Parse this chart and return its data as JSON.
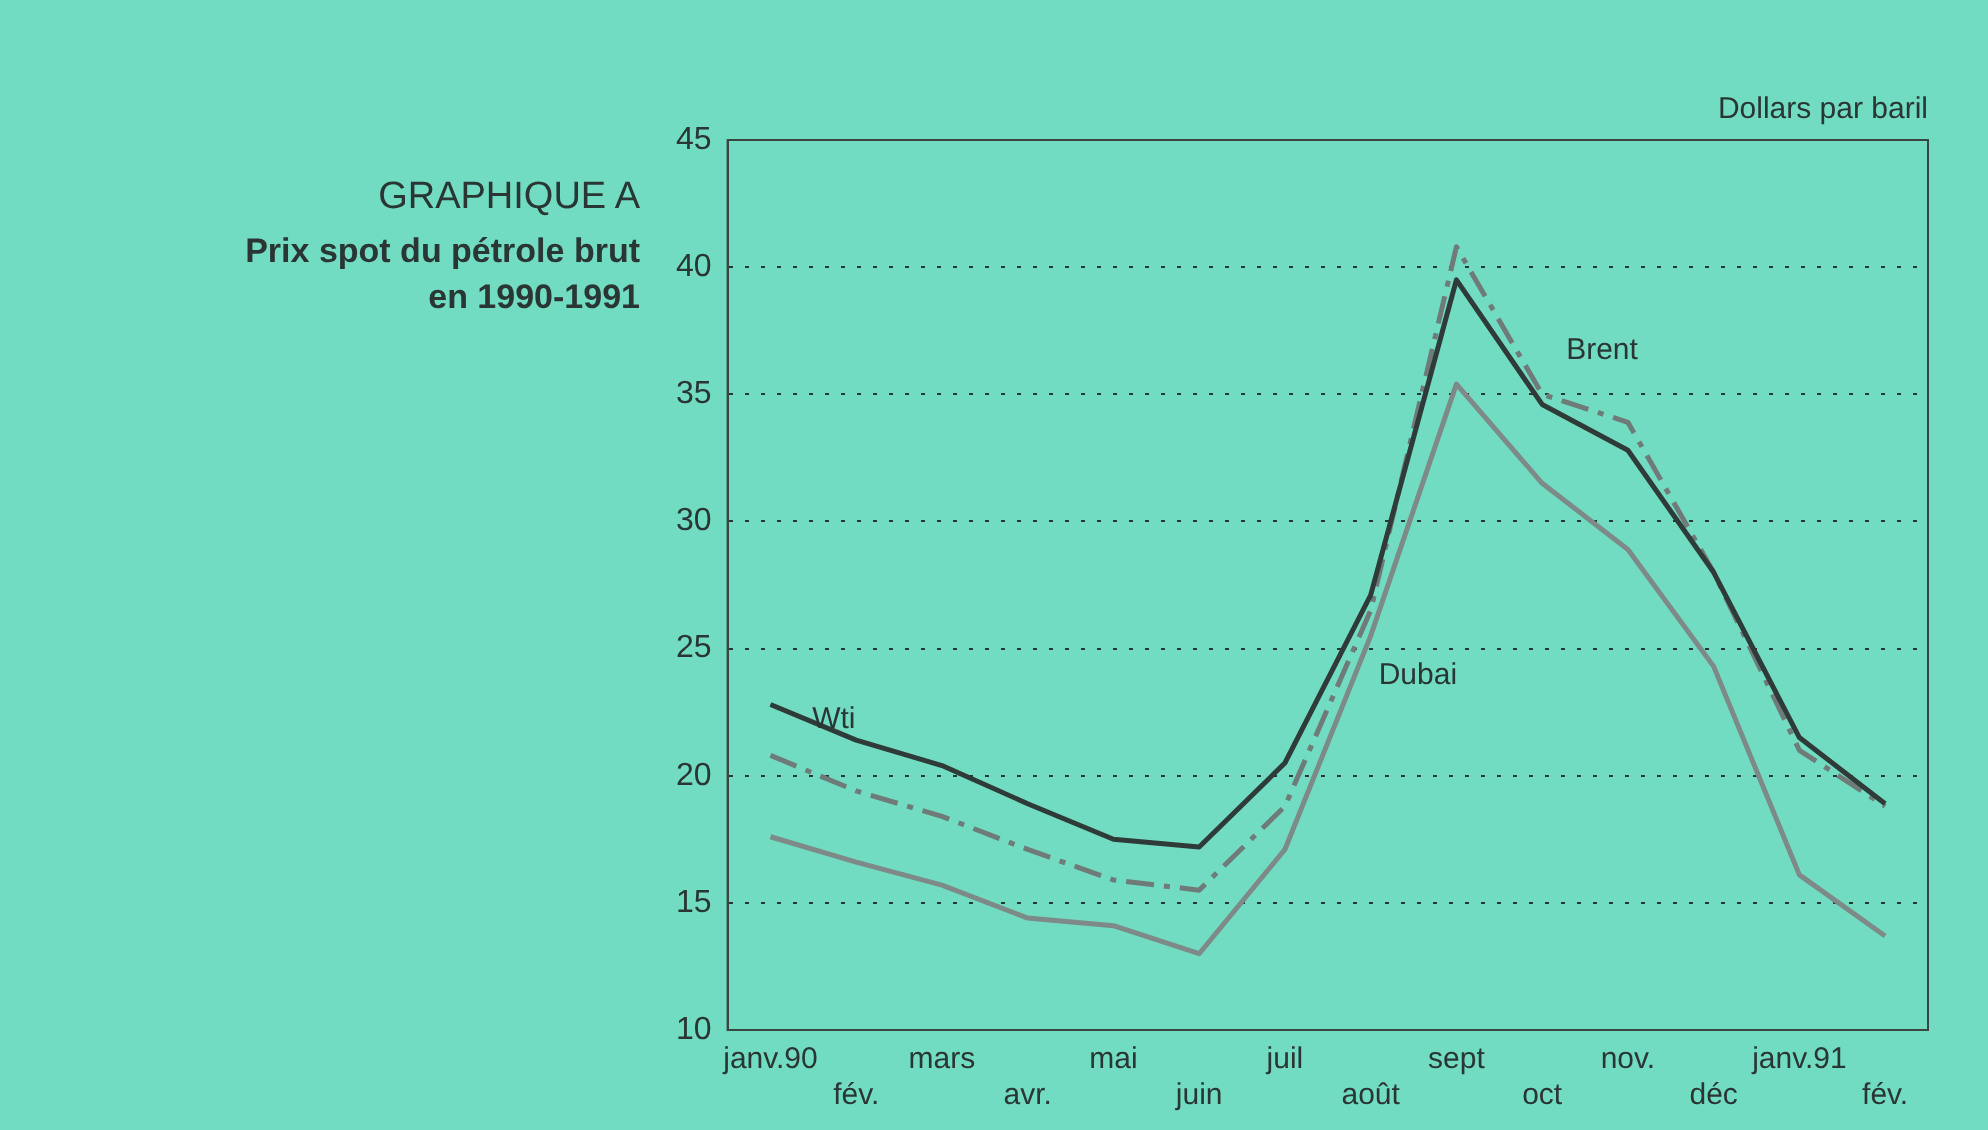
{
  "chart_data": {
    "type": "line",
    "title": "GRAPHIQUE A",
    "subtitle": "Prix spot du pétrole brut en 1990-1991",
    "ylabel": "Dollars par baril",
    "categories": [
      "janv.90",
      "fév.",
      "mars",
      "avr.",
      "mai",
      "juin",
      "juil",
      "août",
      "sept",
      "oct",
      "nov.",
      "déc",
      "janv.91",
      "fév."
    ],
    "series": [
      {
        "name": "Wti",
        "color": "#2f3b38",
        "line_style": "solid",
        "values": [
          22.8,
          21.4,
          20.4,
          18.9,
          17.5,
          17.2,
          20.5,
          27.1,
          39.5,
          34.6,
          32.8,
          28,
          21.5,
          18.9
        ]
      },
      {
        "name": "Brent",
        "color": "#6e7b78",
        "line_style": "dashed",
        "values": [
          20.8,
          19.4,
          18.4,
          17.1,
          15.9,
          15.5,
          18.8,
          26.5,
          40.8,
          35,
          33.9,
          28,
          21,
          18.8
        ]
      },
      {
        "name": "Dubai",
        "color": "#7d8a87",
        "line_style": "solid",
        "values": [
          17.6,
          16.6,
          15.7,
          14.4,
          14.1,
          13,
          17.1,
          25.5,
          35.4,
          31.5,
          28.9,
          24.3,
          16.1,
          13.7
        ]
      }
    ],
    "ylim": [
      10,
      45
    ],
    "yticks": [
      10,
      15,
      20,
      25,
      30,
      35,
      40,
      45
    ],
    "grid": "y",
    "legend": false,
    "marker": "none"
  }
}
